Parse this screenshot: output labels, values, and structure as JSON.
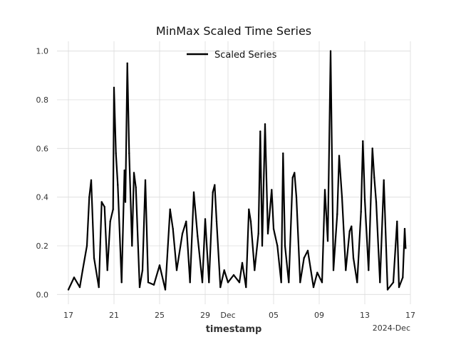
{
  "chart_data": {
    "type": "line",
    "title": "MinMax Scaled Time Series",
    "xlabel": "timestamp",
    "ylabel": "",
    "x_offset_label": "2024-Dec",
    "x_range": [
      "2024-11-16",
      "2024-12-17"
    ],
    "ylim": [
      -0.04,
      1.04
    ],
    "x_ticks": [
      {
        "date": "2024-11-17",
        "label": "17"
      },
      {
        "date": "2024-11-21",
        "label": "21"
      },
      {
        "date": "2024-11-25",
        "label": "25"
      },
      {
        "date": "2024-11-29",
        "label": "29"
      },
      {
        "date": "2024-12-01",
        "label": "Dec"
      },
      {
        "date": "2024-12-05",
        "label": "05"
      },
      {
        "date": "2024-12-09",
        "label": "09"
      },
      {
        "date": "2024-12-13",
        "label": "13"
      },
      {
        "date": "2024-12-17",
        "label": "17"
      }
    ],
    "y_ticks": [
      "0.0",
      "0.2",
      "0.4",
      "0.6",
      "0.8",
      "1.0"
    ],
    "grid": true,
    "legend": "upper center",
    "series": [
      {
        "name": "Scaled Series",
        "color": "#000000",
        "points": [
          [
            "2024-11-17T00:00",
            0.02
          ],
          [
            "2024-11-17T12:00",
            0.07
          ],
          [
            "2024-11-18T00:00",
            0.03
          ],
          [
            "2024-11-18T06:00",
            0.1
          ],
          [
            "2024-11-18T15:00",
            0.2
          ],
          [
            "2024-11-18T20:00",
            0.4
          ],
          [
            "2024-11-19T00:00",
            0.47
          ],
          [
            "2024-11-19T06:00",
            0.15
          ],
          [
            "2024-11-19T16:00",
            0.03
          ],
          [
            "2024-11-19T22:00",
            0.38
          ],
          [
            "2024-11-20T04:00",
            0.36
          ],
          [
            "2024-11-20T10:00",
            0.1
          ],
          [
            "2024-11-20T16:00",
            0.3
          ],
          [
            "2024-11-20T22:00",
            0.35
          ],
          [
            "2024-11-21T00:00",
            0.85
          ],
          [
            "2024-11-21T04:00",
            0.58
          ],
          [
            "2024-11-21T08:00",
            0.45
          ],
          [
            "2024-11-21T16:00",
            0.05
          ],
          [
            "2024-11-21T22:00",
            0.51
          ],
          [
            "2024-11-22T00:00",
            0.38
          ],
          [
            "2024-11-22T04:00",
            0.95
          ],
          [
            "2024-11-22T08:00",
            0.58
          ],
          [
            "2024-11-22T14:00",
            0.2
          ],
          [
            "2024-11-22T18:00",
            0.5
          ],
          [
            "2024-11-22T22:00",
            0.44
          ],
          [
            "2024-11-23T06:00",
            0.03
          ],
          [
            "2024-11-23T12:00",
            0.1
          ],
          [
            "2024-11-23T18:00",
            0.47
          ],
          [
            "2024-11-24T00:00",
            0.05
          ],
          [
            "2024-11-24T12:00",
            0.04
          ],
          [
            "2024-11-25T00:00",
            0.12
          ],
          [
            "2024-11-25T12:00",
            0.02
          ],
          [
            "2024-11-25T22:00",
            0.35
          ],
          [
            "2024-11-26T04:00",
            0.27
          ],
          [
            "2024-11-26T12:00",
            0.1
          ],
          [
            "2024-11-27T00:00",
            0.25
          ],
          [
            "2024-11-27T08:00",
            0.3
          ],
          [
            "2024-11-27T16:00",
            0.05
          ],
          [
            "2024-11-28T00:00",
            0.42
          ],
          [
            "2024-11-28T08:00",
            0.24
          ],
          [
            "2024-11-28T18:00",
            0.05
          ],
          [
            "2024-11-29T00:00",
            0.31
          ],
          [
            "2024-11-29T08:00",
            0.05
          ],
          [
            "2024-11-29T16:00",
            0.42
          ],
          [
            "2024-11-29T20:00",
            0.45
          ],
          [
            "2024-11-30T00:00",
            0.3
          ],
          [
            "2024-11-30T08:00",
            0.03
          ],
          [
            "2024-11-30T16:00",
            0.1
          ],
          [
            "2024-12-01T00:00",
            0.05
          ],
          [
            "2024-12-01T12:00",
            0.08
          ],
          [
            "2024-12-02T00:00",
            0.05
          ],
          [
            "2024-12-02T06:00",
            0.13
          ],
          [
            "2024-12-02T14:00",
            0.03
          ],
          [
            "2024-12-02T20:00",
            0.35
          ],
          [
            "2024-12-03T00:00",
            0.3
          ],
          [
            "2024-12-03T08:00",
            0.1
          ],
          [
            "2024-12-03T16:00",
            0.25
          ],
          [
            "2024-12-03T20:00",
            0.67
          ],
          [
            "2024-12-04T00:00",
            0.2
          ],
          [
            "2024-12-04T06:00",
            0.7
          ],
          [
            "2024-12-04T12:00",
            0.25
          ],
          [
            "2024-12-04T20:00",
            0.43
          ],
          [
            "2024-12-05T00:00",
            0.27
          ],
          [
            "2024-12-05T08:00",
            0.2
          ],
          [
            "2024-12-05T16:00",
            0.05
          ],
          [
            "2024-12-05T20:00",
            0.58
          ],
          [
            "2024-12-06T00:00",
            0.2
          ],
          [
            "2024-12-06T08:00",
            0.05
          ],
          [
            "2024-12-06T16:00",
            0.48
          ],
          [
            "2024-12-06T20:00",
            0.5
          ],
          [
            "2024-12-07T00:00",
            0.4
          ],
          [
            "2024-12-07T08:00",
            0.05
          ],
          [
            "2024-12-07T16:00",
            0.15
          ],
          [
            "2024-12-08T00:00",
            0.18
          ],
          [
            "2024-12-08T12:00",
            0.03
          ],
          [
            "2024-12-08T20:00",
            0.09
          ],
          [
            "2024-12-09T06:00",
            0.05
          ],
          [
            "2024-12-09T12:00",
            0.43
          ],
          [
            "2024-12-09T18:00",
            0.22
          ],
          [
            "2024-12-10T00:00",
            1.0
          ],
          [
            "2024-12-10T06:00",
            0.1
          ],
          [
            "2024-12-10T14:00",
            0.33
          ],
          [
            "2024-12-10T18:00",
            0.57
          ],
          [
            "2024-12-11T00:00",
            0.4
          ],
          [
            "2024-12-11T08:00",
            0.1
          ],
          [
            "2024-12-11T16:00",
            0.26
          ],
          [
            "2024-12-11T20:00",
            0.28
          ],
          [
            "2024-12-12T00:00",
            0.15
          ],
          [
            "2024-12-12T08:00",
            0.05
          ],
          [
            "2024-12-12T16:00",
            0.34
          ],
          [
            "2024-12-12T20:00",
            0.63
          ],
          [
            "2024-12-13T00:00",
            0.39
          ],
          [
            "2024-12-13T08:00",
            0.1
          ],
          [
            "2024-12-13T16:00",
            0.6
          ],
          [
            "2024-12-13T20:00",
            0.48
          ],
          [
            "2024-12-14T00:00",
            0.38
          ],
          [
            "2024-12-14T08:00",
            0.05
          ],
          [
            "2024-12-14T16:00",
            0.47
          ],
          [
            "2024-12-15T00:00",
            0.02
          ],
          [
            "2024-12-15T12:00",
            0.05
          ],
          [
            "2024-12-15T20:00",
            0.3
          ],
          [
            "2024-12-16T00:00",
            0.03
          ],
          [
            "2024-12-16T08:00",
            0.07
          ],
          [
            "2024-12-16T12:00",
            0.27
          ],
          [
            "2024-12-16T14:00",
            0.19
          ]
        ]
      }
    ]
  }
}
